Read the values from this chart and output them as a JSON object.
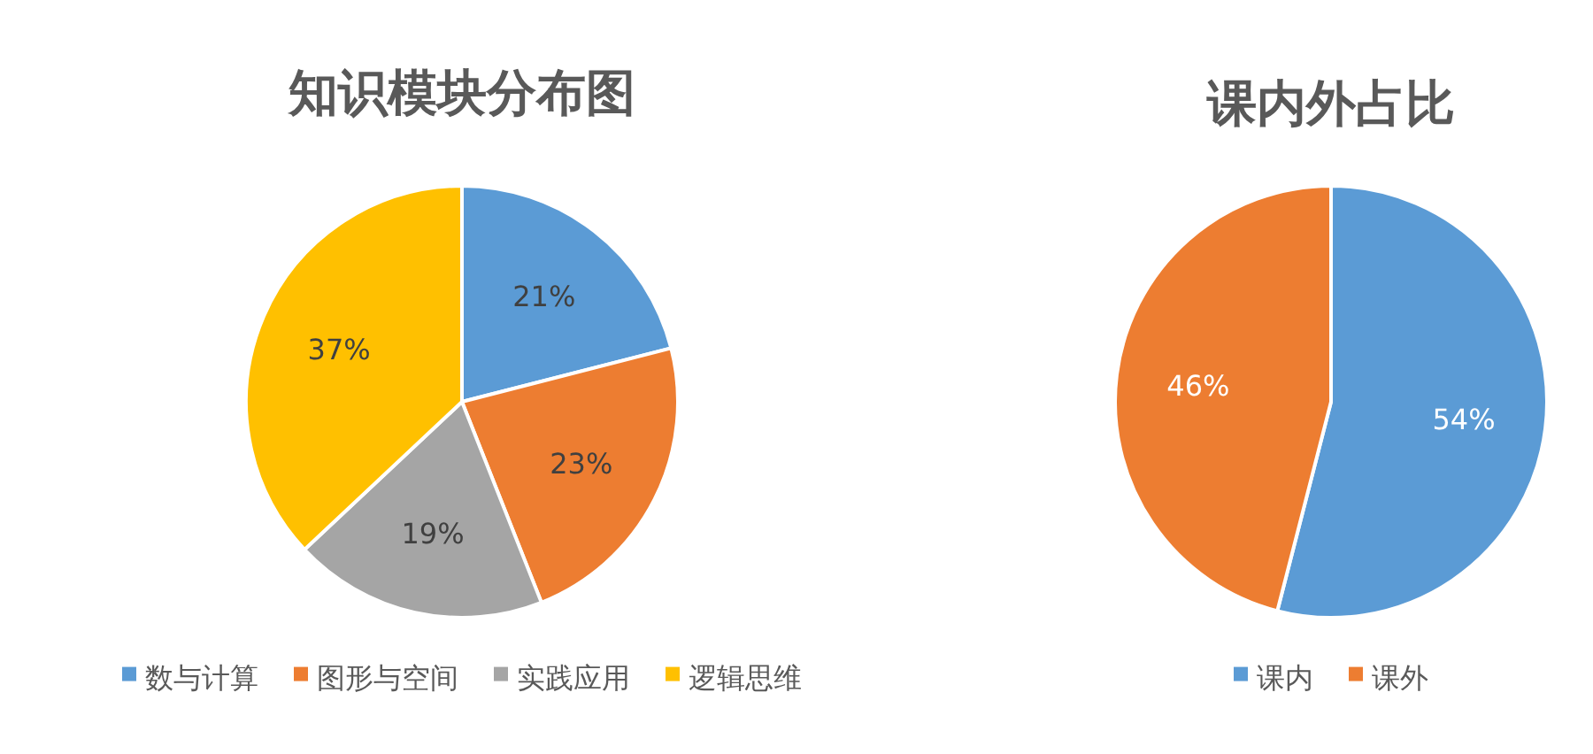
{
  "chart_data": [
    {
      "type": "pie",
      "title": "知识模块分布图",
      "categories": [
        "数与计算",
        "图形与空间",
        "实践应用",
        "逻辑思维"
      ],
      "values": [
        21,
        23,
        19,
        37
      ],
      "colors": [
        "#5b9bd5",
        "#ed7d31",
        "#a5a5a5",
        "#ffc000"
      ],
      "value_labels": [
        "21%",
        "23%",
        "19%",
        "37%"
      ],
      "legend": "bottom"
    },
    {
      "type": "pie",
      "title": "课内外占比",
      "categories": [
        "课内",
        "课外"
      ],
      "values": [
        54,
        46
      ],
      "colors": [
        "#5b9bd5",
        "#ed7d31"
      ],
      "value_labels": [
        "54%",
        "46%"
      ],
      "legend": "bottom"
    }
  ]
}
